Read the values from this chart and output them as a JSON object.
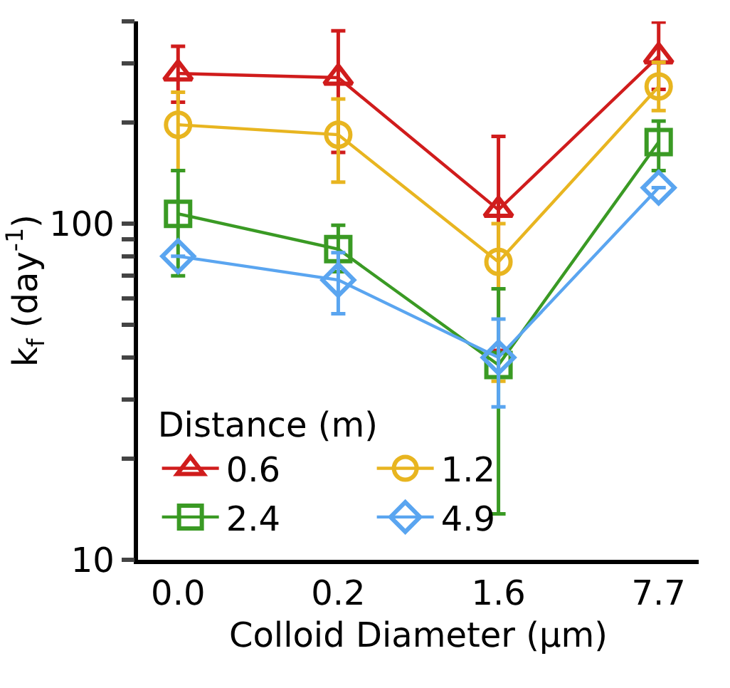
{
  "chart_data": {
    "type": "line",
    "xlabel": "Colloid Diameter (µm)",
    "ylabel": "k$_{f}$ (day$^{-1}$)",
    "legend_title": "Distance (m)",
    "categories": [
      "0.0",
      "0.2",
      "1.6",
      "7.7"
    ],
    "series": [
      {
        "name": "0.6",
        "color": "#d01c1c",
        "marker": "triangle",
        "values": [
          280,
          272,
          110,
          315
        ],
        "errors": [
          [
            230,
            337
          ],
          [
            163,
            375
          ],
          [
            42,
            182
          ],
          [
            251,
            398
          ]
        ]
      },
      {
        "name": "1.2",
        "color": "#e8b520",
        "marker": "circle",
        "values": [
          197,
          184,
          77,
          256
        ],
        "errors": [
          [
            144,
            246
          ],
          [
            133,
            235
          ],
          [
            34,
            100
          ],
          [
            217,
            302
          ]
        ]
      },
      {
        "name": "2.4",
        "color": "#3a9a24",
        "marker": "square",
        "values": [
          107,
          84,
          38,
          175
        ],
        "errors": [
          [
            70,
            144
          ],
          [
            72,
            99
          ],
          [
            13.7,
            64
          ],
          [
            144,
            202
          ]
        ]
      },
      {
        "name": "4.9",
        "color": "#5aa5f0",
        "marker": "diamond",
        "values": [
          80,
          68,
          40,
          128
        ],
        "errors": [
          null,
          [
            54,
            82
          ],
          [
            28.5,
            52
          ],
          null
        ]
      }
    ],
    "log": "y",
    "ylim": [
      10,
      400
    ],
    "yticks": [
      10,
      {
        "value": 20,
        "label": null
      },
      {
        "value": 30,
        "label": null
      },
      {
        "value": 40,
        "label": null
      },
      {
        "value": 50,
        "label": null
      },
      {
        "value": 60,
        "label": null
      },
      {
        "value": 70,
        "label": null
      },
      {
        "value": 80,
        "label": null
      },
      {
        "value": 90,
        "label": null
      },
      100,
      {
        "value": 200,
        "label": null
      },
      {
        "value": 300,
        "label": null
      },
      {
        "value": 400,
        "label": null
      }
    ],
    "legend": "bottom left",
    "line_style": "solid"
  }
}
